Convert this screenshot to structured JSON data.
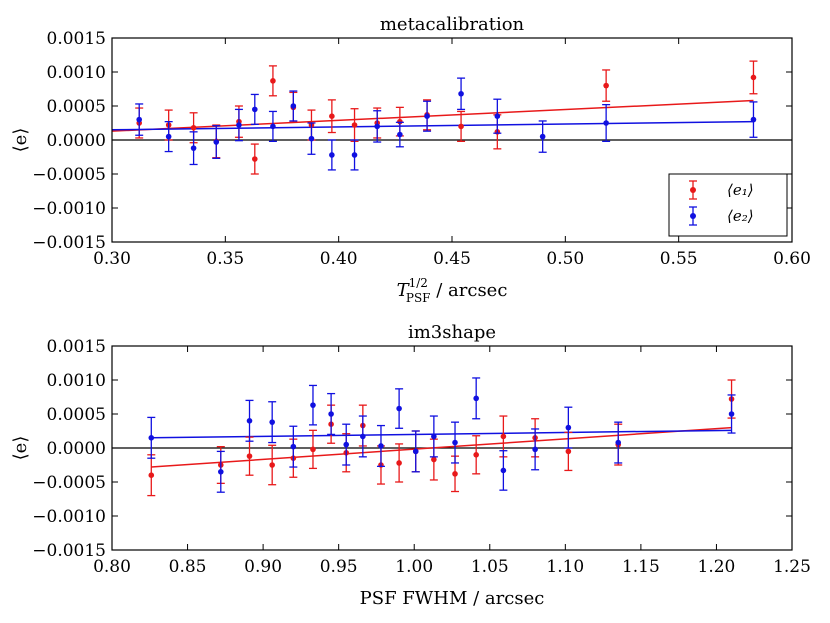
{
  "chart_data": [
    {
      "type": "scatter",
      "title": "metacalibration",
      "xlabel": "T_PSF^{1/2} / arcsec",
      "xlabel_main": "T",
      "xlabel_sup": "1/2",
      "xlabel_sub": "PSF",
      "xlabel_suffix": " / arcsec",
      "ylabel": "⟨e⟩",
      "xlim": [
        0.3,
        0.6
      ],
      "ylim": [
        -0.0015,
        0.0015
      ],
      "xticks": [
        0.3,
        0.35,
        0.4,
        0.45,
        0.5,
        0.55,
        0.6
      ],
      "xtick_labels": [
        "0.30",
        "0.35",
        "0.40",
        "0.45",
        "0.50",
        "0.55",
        "0.60"
      ],
      "yticks": [
        -0.0015,
        -0.001,
        -0.0005,
        0.0,
        0.0005,
        0.001,
        0.0015
      ],
      "ytick_labels": [
        "−0.0015",
        "−0.0010",
        "−0.0005",
        "0.0000",
        "0.0005",
        "0.0010",
        "0.0015"
      ],
      "legend": {
        "position": "lower-right",
        "entries": [
          "⟨e₁⟩",
          "⟨e₂⟩"
        ]
      },
      "series": [
        {
          "name": "⟨e₁⟩",
          "color": "#e8191a",
          "x": [
            0.312,
            0.325,
            0.336,
            0.346,
            0.356,
            0.363,
            0.371,
            0.38,
            0.388,
            0.397,
            0.407,
            0.417,
            0.427,
            0.439,
            0.454,
            0.47,
            0.518,
            0.583
          ],
          "y": [
            0.00025,
            0.00022,
            0.00018,
            -2e-05,
            0.00027,
            -0.00028,
            0.00087,
            0.00048,
            0.00022,
            0.00035,
            0.00022,
            0.00025,
            0.00027,
            0.00037,
            0.0002,
            0.00012,
            0.0008,
            0.00092
          ],
          "err": [
            0.00022,
            0.00022,
            0.00022,
            0.00024,
            0.00023,
            0.00022,
            0.00022,
            0.00022,
            0.00022,
            0.00024,
            0.00024,
            0.00022,
            0.00021,
            0.00022,
            0.00022,
            0.00025,
            0.00023,
            0.00024
          ],
          "fit": [
            [
              0.3,
              0.00013
            ],
            [
              0.583,
              0.00058
            ]
          ]
        },
        {
          "name": "⟨e₂⟩",
          "color": "#1010e0",
          "x": [
            0.312,
            0.325,
            0.336,
            0.346,
            0.356,
            0.363,
            0.371,
            0.38,
            0.388,
            0.397,
            0.407,
            0.417,
            0.427,
            0.439,
            0.454,
            0.47,
            0.49,
            0.518,
            0.583
          ],
          "y": [
            0.0003,
            5e-05,
            -0.00012,
            -3e-05,
            0.00022,
            0.00045,
            0.0002,
            0.0005,
            2e-05,
            -0.00022,
            -0.00022,
            0.0002,
            8e-05,
            0.00035,
            0.00068,
            0.00035,
            5e-05,
            0.00025,
            0.0003
          ],
          "err": [
            0.00023,
            0.00022,
            0.00024,
            0.00024,
            0.00023,
            0.00022,
            0.00022,
            0.00022,
            0.00023,
            0.00022,
            0.00022,
            0.00023,
            0.00018,
            0.00022,
            0.00023,
            0.00025,
            0.00023,
            0.00027,
            0.00026
          ],
          "fit": [
            [
              0.3,
              0.00015
            ],
            [
              0.583,
              0.00027
            ]
          ]
        }
      ]
    },
    {
      "type": "scatter",
      "title": "im3shape",
      "xlabel": "PSF FWHM / arcsec",
      "ylabel": "⟨e⟩",
      "xlim": [
        0.8,
        1.25
      ],
      "ylim": [
        -0.0015,
        0.0015
      ],
      "xticks": [
        0.8,
        0.85,
        0.9,
        0.95,
        1.0,
        1.05,
        1.1,
        1.15,
        1.2,
        1.25
      ],
      "xtick_labels": [
        "0.80",
        "0.85",
        "0.90",
        "0.95",
        "1.00",
        "1.05",
        "1.10",
        "1.15",
        "1.20",
        "1.25"
      ],
      "yticks": [
        -0.0015,
        -0.001,
        -0.0005,
        0.0,
        0.0005,
        0.001,
        0.0015
      ],
      "ytick_labels": [
        "−0.0015",
        "−0.0010",
        "−0.0005",
        "0.0000",
        "0.0005",
        "0.0010",
        "0.0015"
      ],
      "series": [
        {
          "name": "⟨e₁⟩",
          "color": "#e8191a",
          "x": [
            0.826,
            0.872,
            0.891,
            0.906,
            0.92,
            0.933,
            0.945,
            0.955,
            0.966,
            0.978,
            0.99,
            1.001,
            1.013,
            1.027,
            1.041,
            1.059,
            1.08,
            1.102,
            1.135,
            1.21
          ],
          "y": [
            -0.0004,
            -0.00025,
            -0.00012,
            -0.00025,
            -0.00015,
            -2e-05,
            0.00035,
            -7e-05,
            0.00033,
            -0.00025,
            -0.00022,
            -5e-05,
            -0.00017,
            -0.00038,
            -0.0001,
            0.00017,
            0.00015,
            -5e-05,
            5e-05,
            0.00072
          ],
          "err": [
            0.0003,
            0.00027,
            0.00028,
            0.00029,
            0.00028,
            0.00028,
            0.00028,
            0.00028,
            0.0003,
            0.00028,
            0.00028,
            0.0003,
            0.0003,
            0.00026,
            0.00028,
            0.0003,
            0.00028,
            0.00028,
            0.0003,
            0.00028
          ],
          "fit": [
            [
              0.826,
              -0.00028
            ],
            [
              1.21,
              0.0003
            ]
          ]
        },
        {
          "name": "⟨e₂⟩",
          "color": "#1010e0",
          "x": [
            0.826,
            0.872,
            0.891,
            0.906,
            0.92,
            0.933,
            0.945,
            0.955,
            0.966,
            0.978,
            0.99,
            1.001,
            1.013,
            1.027,
            1.041,
            1.059,
            1.08,
            1.102,
            1.135,
            1.21
          ],
          "y": [
            0.00015,
            -0.00035,
            0.0004,
            0.00038,
            2e-05,
            0.00063,
            0.0005,
            5e-05,
            0.00017,
            3e-05,
            0.00058,
            -5e-05,
            0.00017,
            8e-05,
            0.00073,
            -0.00033,
            -2e-05,
            0.0003,
            8e-05,
            0.0005
          ],
          "err": [
            0.0003,
            0.0003,
            0.0003,
            0.0003,
            0.0003,
            0.00029,
            0.0003,
            0.0003,
            0.0003,
            0.0003,
            0.00029,
            0.0003,
            0.0003,
            0.0003,
            0.0003,
            0.00029,
            0.0003,
            0.0003,
            0.0003,
            0.00028
          ],
          "fit": [
            [
              0.826,
              0.00015
            ],
            [
              1.21,
              0.00026
            ]
          ]
        }
      ]
    }
  ]
}
